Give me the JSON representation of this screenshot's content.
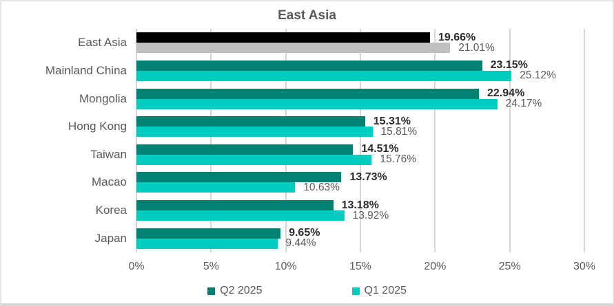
{
  "chart_data": {
    "type": "bar",
    "orientation": "horizontal",
    "title": "East Asia",
    "categories": [
      "East Asia",
      "Mainland China",
      "Mongolia",
      "Hong Kong",
      "Taiwan",
      "Macao",
      "Korea",
      "Japan"
    ],
    "series": [
      {
        "name": "Q2 2025",
        "color": "#008272",
        "values": [
          19.66,
          23.15,
          22.94,
          15.31,
          14.51,
          13.73,
          13.18,
          9.65
        ],
        "labels": [
          "19.66%",
          "23.15%",
          "22.94%",
          "15.31%",
          "14.51%",
          "13.73%",
          "13.18%",
          "9.65%"
        ],
        "bar_colors": [
          "#000000",
          "#008272",
          "#008272",
          "#008272",
          "#008272",
          "#008272",
          "#008272",
          "#008272"
        ]
      },
      {
        "name": "Q1 2025",
        "color": "#00CCC0",
        "values": [
          21.01,
          25.12,
          24.17,
          15.81,
          15.76,
          10.63,
          13.92,
          9.44
        ],
        "labels": [
          "21.01%",
          "25.12%",
          "24.17%",
          "15.81%",
          "15.76%",
          "10.63%",
          "13.92%",
          "9.44%"
        ],
        "bar_colors": [
          "#BFBFBF",
          "#00CCC0",
          "#00CCC0",
          "#00CCC0",
          "#00CCC0",
          "#00CCC0",
          "#00CCC0",
          "#00CCC0"
        ]
      }
    ],
    "x_axis": {
      "tick_labels": [
        "0%",
        "5%",
        "10%",
        "15%",
        "20%",
        "25%",
        "30%"
      ],
      "min": 0,
      "max": 30
    },
    "legend_position": "bottom",
    "grid": true,
    "colors": {
      "gridline": "#D6D6D6",
      "title_text": "#595959",
      "axis_text": "#595959",
      "q2_value_text": "#2b2b2b",
      "q1_value_text": "#595959"
    }
  }
}
